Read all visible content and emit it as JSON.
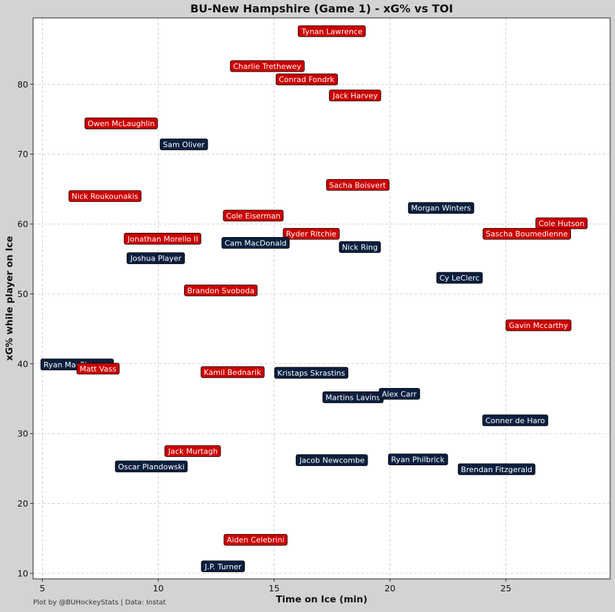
{
  "credit": "Plot by @BUHockeyStats | Data: Instat",
  "chart_data": {
    "type": "scatter",
    "title": "BU-New Hampshire (Game 1) - xG% vs TOI",
    "xlabel": "Time on Ice (min)",
    "ylabel": "xG% while player on Ice",
    "xlim": [
      4.6,
      29.5
    ],
    "ylim": [
      9.2,
      89.5
    ],
    "xticks": [
      5,
      10,
      15,
      20,
      25
    ],
    "yticks": [
      10,
      20,
      30,
      40,
      50,
      60,
      70,
      80
    ],
    "grid": true,
    "colors": {
      "BU": "#cc0000",
      "UNH": "#0b1f3f",
      "label_border": "#000000",
      "background": "#d3d3d3",
      "plot_bg": "#ffffff"
    },
    "teams": [
      "BU",
      "UNH"
    ],
    "points": [
      {
        "name": "Tynan Lawrence",
        "team": "BU",
        "x": 17.5,
        "y": 87.6
      },
      {
        "name": "Charlie Trethewey",
        "team": "BU",
        "x": 14.7,
        "y": 82.6
      },
      {
        "name": "Conrad Fondrk",
        "team": "BU",
        "x": 16.4,
        "y": 80.7
      },
      {
        "name": "Jack Harvey",
        "team": "BU",
        "x": 18.5,
        "y": 78.4
      },
      {
        "name": "Owen McLaughlin",
        "team": "BU",
        "x": 8.4,
        "y": 74.4
      },
      {
        "name": "Sam Oliver",
        "team": "UNH",
        "x": 11.1,
        "y": 71.4
      },
      {
        "name": "Sacha Boisvert",
        "team": "BU",
        "x": 18.6,
        "y": 65.6
      },
      {
        "name": "Nick Roukounakis",
        "team": "BU",
        "x": 7.7,
        "y": 64.0
      },
      {
        "name": "Morgan Winters",
        "team": "UNH",
        "x": 22.2,
        "y": 62.3
      },
      {
        "name": "Cole Eiserman",
        "team": "BU",
        "x": 14.1,
        "y": 61.2
      },
      {
        "name": "Cole Hutson",
        "team": "BU",
        "x": 27.4,
        "y": 60.1
      },
      {
        "name": "Ryder Ritchie",
        "team": "BU",
        "x": 16.6,
        "y": 58.6
      },
      {
        "name": "Sascha Boumedienne",
        "team": "BU",
        "x": 25.9,
        "y": 58.6
      },
      {
        "name": "Jonathan Morello II",
        "team": "BU",
        "x": 10.2,
        "y": 57.9
      },
      {
        "name": "Cam MacDonald",
        "team": "UNH",
        "x": 14.2,
        "y": 57.3
      },
      {
        "name": "Nick Ring",
        "team": "UNH",
        "x": 18.7,
        "y": 56.7
      },
      {
        "name": "Joshua Player",
        "team": "UNH",
        "x": 9.9,
        "y": 55.1
      },
      {
        "name": "Cy LeClerc",
        "team": "UNH",
        "x": 23.0,
        "y": 52.3
      },
      {
        "name": "Brandon Svoboda",
        "team": "BU",
        "x": 12.7,
        "y": 50.5
      },
      {
        "name": "Gavin Mccarthy",
        "team": "BU",
        "x": 26.4,
        "y": 45.5
      },
      {
        "name": "Ryan MacPherson",
        "team": "UNH",
        "x": 6.5,
        "y": 39.9
      },
      {
        "name": "Matt Vass",
        "team": "BU",
        "x": 7.4,
        "y": 39.3
      },
      {
        "name": "Kamil Bednarik",
        "team": "BU",
        "x": 13.2,
        "y": 38.8
      },
      {
        "name": "Kristaps Skrastins",
        "team": "UNH",
        "x": 16.6,
        "y": 38.7
      },
      {
        "name": "Martins Lavins",
        "team": "UNH",
        "x": 18.4,
        "y": 35.2
      },
      {
        "name": "Alex Carr",
        "team": "UNH",
        "x": 20.4,
        "y": 35.7
      },
      {
        "name": "Conner de Haro",
        "team": "UNH",
        "x": 25.4,
        "y": 31.9
      },
      {
        "name": "Jack Murtagh",
        "team": "BU",
        "x": 11.5,
        "y": 27.5
      },
      {
        "name": "Jacob Newcombe",
        "team": "UNH",
        "x": 17.5,
        "y": 26.2
      },
      {
        "name": "Ryan Philbrick",
        "team": "UNH",
        "x": 21.2,
        "y": 26.3
      },
      {
        "name": "Oscar Plandowski",
        "team": "UNH",
        "x": 9.7,
        "y": 25.3
      },
      {
        "name": "Brendan Fitzgerald",
        "team": "UNH",
        "x": 24.6,
        "y": 24.9
      },
      {
        "name": "Aiden Celebrini",
        "team": "BU",
        "x": 14.2,
        "y": 14.8
      },
      {
        "name": "J.P. Turner",
        "team": "UNH",
        "x": 12.8,
        "y": 11.0
      }
    ]
  }
}
